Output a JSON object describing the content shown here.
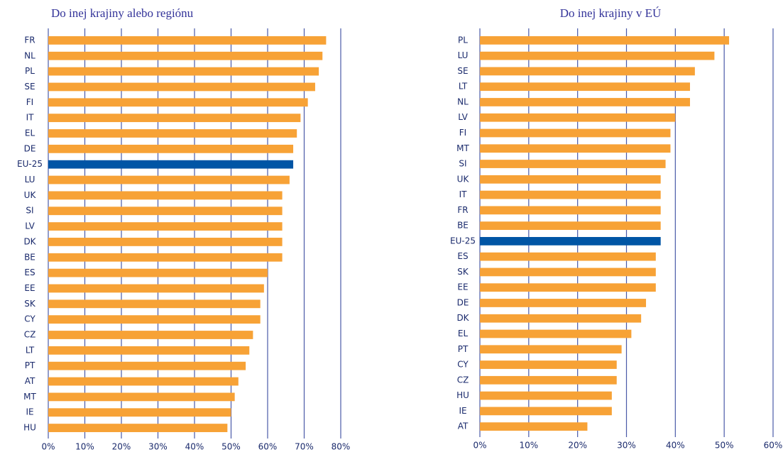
{
  "chart_data": [
    {
      "type": "barh",
      "title": "Do inej krajiny alebo regiónu",
      "categories": [
        "FR",
        "NL",
        "PL",
        "SE",
        "FI",
        "IT",
        "EL",
        "DE",
        "EU-25",
        "LU",
        "UK",
        "SI",
        "LV",
        "DK",
        "BE",
        "ES",
        "EE",
        "SK",
        "CY",
        "CZ",
        "LT",
        "PT",
        "AT",
        "MT",
        "IE",
        "HU"
      ],
      "values": [
        76,
        75,
        74,
        73,
        71,
        69,
        68,
        67,
        67,
        66,
        64,
        64,
        64,
        64,
        64,
        60,
        59,
        58,
        58,
        56,
        55,
        54,
        52,
        51,
        50,
        49
      ],
      "colors": [
        "#f7a236",
        "#f7a236",
        "#f7a236",
        "#f7a236",
        "#f7a236",
        "#f7a236",
        "#f7a236",
        "#f7a236",
        "#0055a5",
        "#f7a236",
        "#f7a236",
        "#f7a236",
        "#f7a236",
        "#f7a236",
        "#f7a236",
        "#f7a236",
        "#f7a236",
        "#f7a236",
        "#f7a236",
        "#f7a236",
        "#f7a236",
        "#f7a236",
        "#f7a236",
        "#f7a236",
        "#f7a236",
        "#f7a236"
      ],
      "xlim": [
        0,
        80
      ],
      "xticks": [
        {
          "value": 0,
          "label": "0%"
        },
        {
          "value": 10,
          "label": "10%"
        },
        {
          "value": 20,
          "label": "20%"
        },
        {
          "value": 30,
          "label": "30%"
        },
        {
          "value": 40,
          "label": "40%"
        },
        {
          "value": 50,
          "label": "50%"
        },
        {
          "value": 60,
          "label": "60%"
        },
        {
          "value": 70,
          "label": "70%"
        },
        {
          "value": 80,
          "label": "80%"
        }
      ],
      "grid": true
    },
    {
      "type": "barh",
      "title": "Do inej krajiny v EÚ",
      "categories": [
        "PL",
        "LU",
        "SE",
        "LT",
        "NL",
        "LV",
        "FI",
        "MT",
        "SI",
        "UK",
        "IT",
        "FR",
        "BE",
        "EU-25",
        "ES",
        "SK",
        "EE",
        "DE",
        "DK",
        "EL",
        "PT",
        "CY",
        "CZ",
        "HU",
        "IE",
        "AT"
      ],
      "values": [
        51,
        48,
        44,
        43,
        43,
        40,
        39,
        39,
        38,
        37,
        37,
        37,
        37,
        37,
        36,
        36,
        36,
        34,
        33,
        31,
        29,
        28,
        28,
        27,
        27,
        22
      ],
      "colors": [
        "#f7a236",
        "#f7a236",
        "#f7a236",
        "#f7a236",
        "#f7a236",
        "#f7a236",
        "#f7a236",
        "#f7a236",
        "#f7a236",
        "#f7a236",
        "#f7a236",
        "#f7a236",
        "#f7a236",
        "#0055a5",
        "#f7a236",
        "#f7a236",
        "#f7a236",
        "#f7a236",
        "#f7a236",
        "#f7a236",
        "#f7a236",
        "#f7a236",
        "#f7a236",
        "#f7a236",
        "#f7a236",
        "#f7a236"
      ],
      "xlim": [
        0,
        60
      ],
      "xticks": [
        {
          "value": 0,
          "label": "0%"
        },
        {
          "value": 10,
          "label": "10%"
        },
        {
          "value": 20,
          "label": "20%"
        },
        {
          "value": 30,
          "label": "30%"
        },
        {
          "value": 40,
          "label": "40%"
        },
        {
          "value": 50,
          "label": "50%"
        },
        {
          "value": 60,
          "label": "60%"
        }
      ],
      "grid": true
    }
  ]
}
